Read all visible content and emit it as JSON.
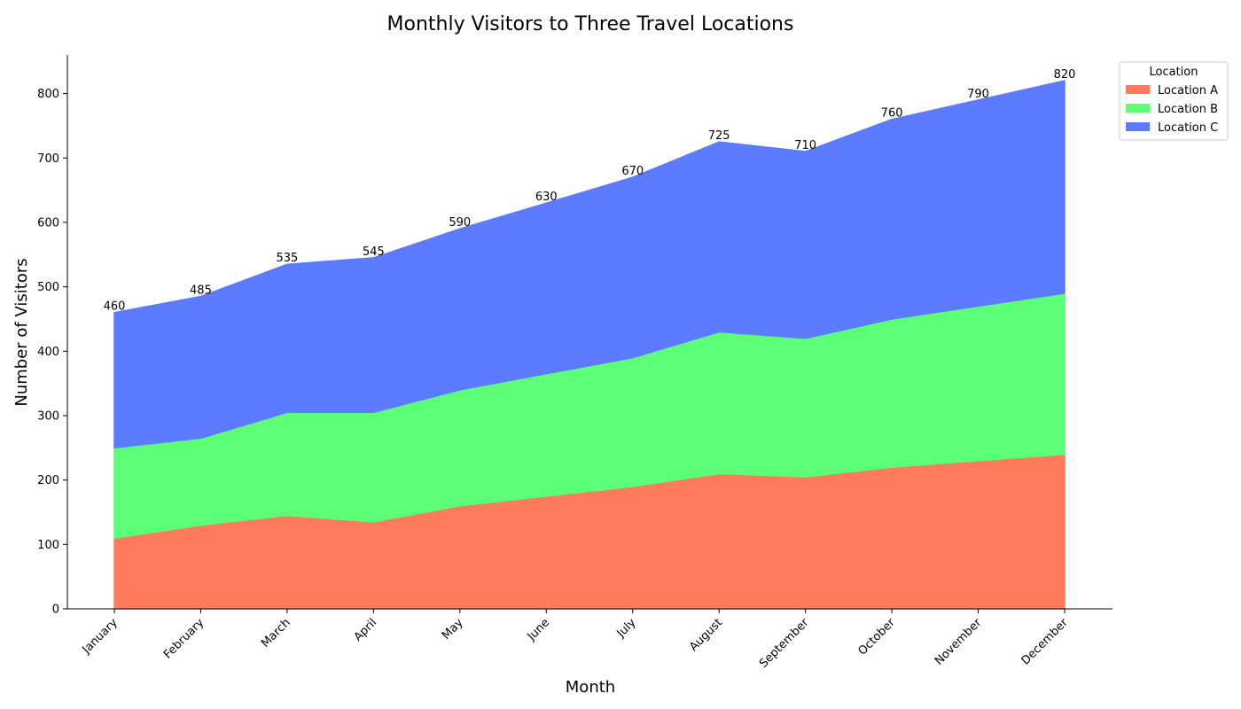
{
  "chart_data": {
    "type": "area",
    "stacked": true,
    "title": "Monthly Visitors to Three Travel Locations",
    "xlabel": "Month",
    "ylabel": "Number of Visitors",
    "categories": [
      "January",
      "February",
      "March",
      "April",
      "May",
      "June",
      "July",
      "August",
      "September",
      "October",
      "November",
      "December"
    ],
    "series": [
      {
        "name": "Location A",
        "color": "#ff7b5c",
        "values": [
          110,
          130,
          145,
          135,
          160,
          175,
          190,
          210,
          205,
          220,
          230,
          240
        ]
      },
      {
        "name": "Location B",
        "color": "#5cff75",
        "values": [
          140,
          135,
          160,
          170,
          180,
          190,
          200,
          220,
          215,
          230,
          240,
          250
        ]
      },
      {
        "name": "Location C",
        "color": "#5c7bff",
        "values": [
          210,
          220,
          230,
          240,
          250,
          265,
          280,
          295,
          290,
          310,
          320,
          330
        ]
      }
    ],
    "totals": [
      460,
      485,
      535,
      545,
      590,
      630,
      670,
      725,
      710,
      760,
      790,
      820
    ],
    "ylim": [
      0,
      860
    ],
    "yticks": [
      0,
      100,
      200,
      300,
      400,
      500,
      600,
      700,
      800
    ],
    "legend_title": "Location",
    "legend_position": "upper-right outside",
    "grid": false
  }
}
